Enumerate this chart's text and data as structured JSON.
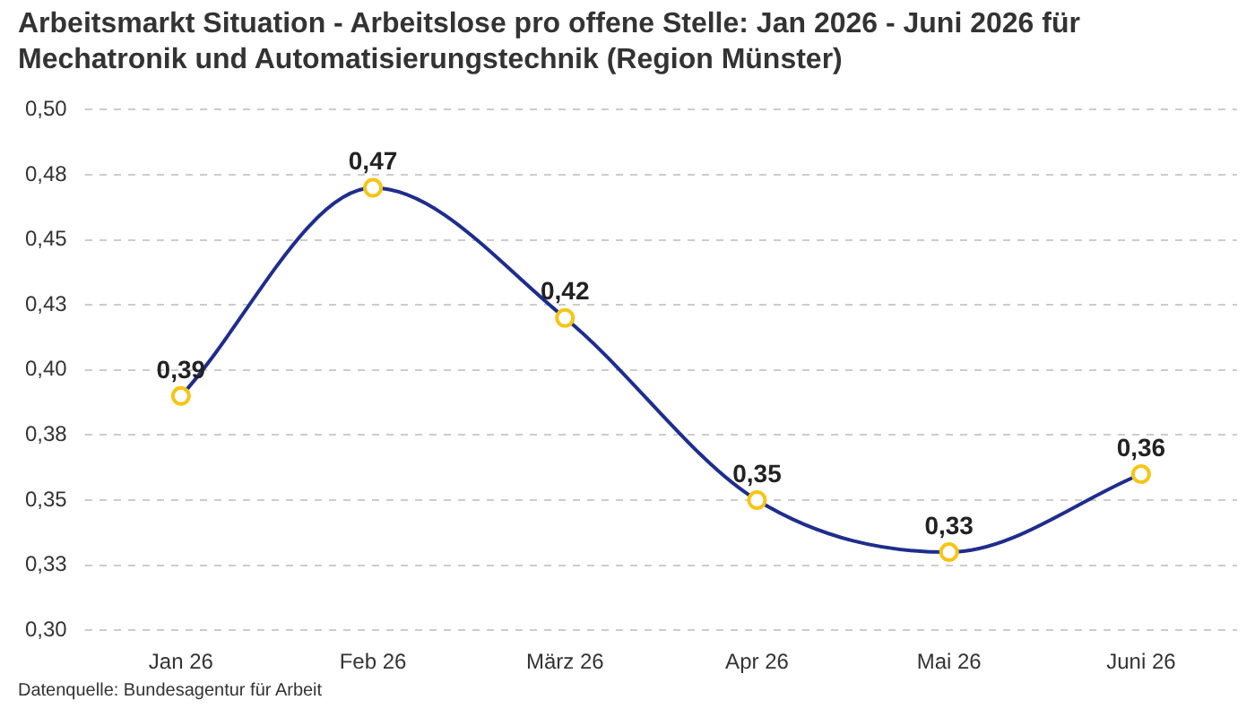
{
  "chart_data": {
    "type": "line",
    "title": "Arbeitsmarkt Situation - Arbeitslose pro offene Stelle: Jan 2026 - Juni 2026 für Mechatronik und Automatisierungstechnik (Region Münster)",
    "categories": [
      "Jan 26",
      "Feb 26",
      "März 26",
      "Apr 26",
      "Mai 26",
      "Juni 26"
    ],
    "series": [
      {
        "color": "#1f2d8c",
        "values": [
          0.39,
          0.47,
          0.42,
          0.35,
          0.33,
          0.36
        ],
        "value_labels": [
          "0,39",
          "0,47",
          "0,42",
          "0,35",
          "0,33",
          "0,36"
        ]
      }
    ],
    "ylim": [
      0.3,
      0.5
    ],
    "yticks": [
      {
        "value": 0.3,
        "label": "0,30"
      },
      {
        "value": 0.325,
        "label": "0,33"
      },
      {
        "value": 0.35,
        "label": "0,35"
      },
      {
        "value": 0.375,
        "label": "0,38"
      },
      {
        "value": 0.4,
        "label": "0,40"
      },
      {
        "value": 0.425,
        "label": "0,43"
      },
      {
        "value": 0.45,
        "label": "0,45"
      },
      {
        "value": 0.475,
        "label": "0,48"
      },
      {
        "value": 0.5,
        "label": "0,50"
      }
    ],
    "grid": "y",
    "marker": "circle",
    "line_style": "solid",
    "legend": false,
    "annotations": [
      "Datenquelle: Bundesagentur für Arbeit"
    ]
  }
}
